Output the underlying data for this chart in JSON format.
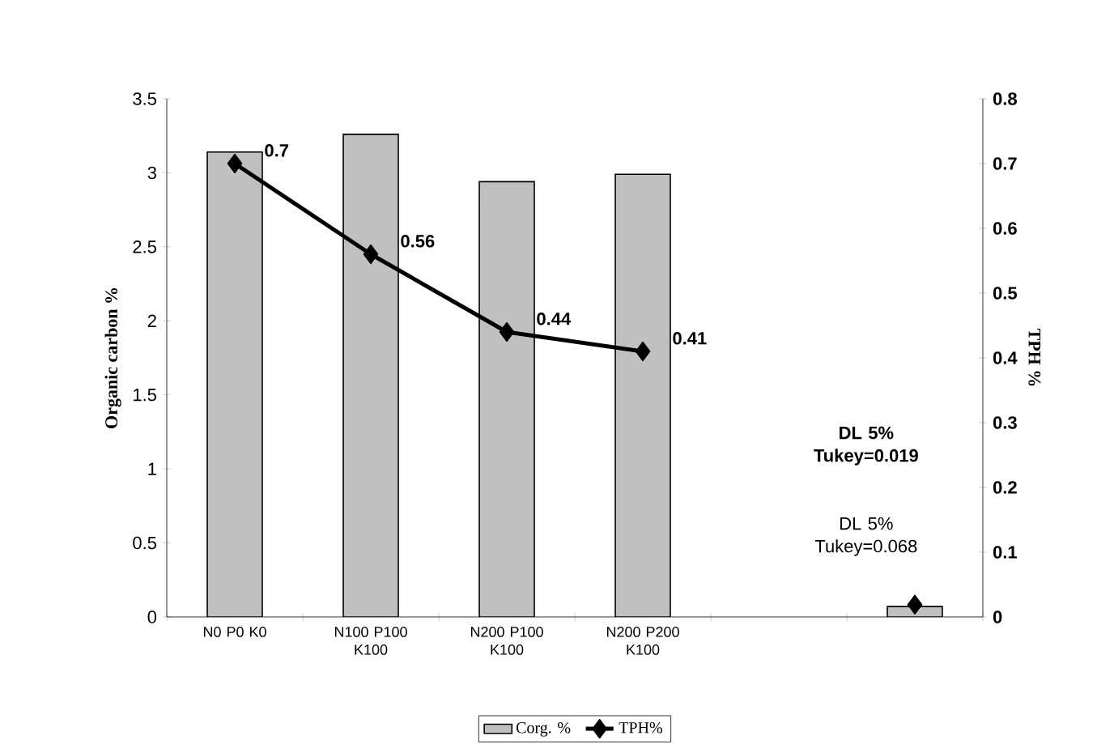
{
  "chart_data": {
    "type": "bar",
    "categories": [
      "N0 P0 K0",
      "N100 P100 K100",
      "N200 P100 K100",
      "N200 P200 K100",
      null,
      null
    ],
    "ylabel": "Organic carbon %",
    "y2label": "TPH %",
    "ylim": [
      0,
      3.5
    ],
    "yticks": [
      0,
      0.5,
      1,
      1.5,
      2,
      2.5,
      3,
      3.5
    ],
    "y2lim": [
      0,
      0.8
    ],
    "y2ticks": [
      0,
      0.1,
      0.2,
      0.3,
      0.4,
      0.5,
      0.6,
      0.7,
      0.8
    ],
    "legend": "bottom",
    "grid": false,
    "series": [
      {
        "name": "Corg. %",
        "color": "#c0c0c0",
        "values": [
          3.14,
          3.26,
          2.94,
          2.99,
          null,
          0.07
        ]
      },
      {
        "name": "TPH%",
        "type": "line",
        "axis": "y2",
        "color": "#000000",
        "marker": "diamond",
        "values": [
          0.7,
          0.56,
          0.44,
          0.41,
          null,
          0.019
        ],
        "value_labels": [
          "0.7",
          "0.56",
          "0.44",
          "0.41",
          null,
          null
        ]
      }
    ],
    "annotations": [
      "DL 5% Tukey=0.019",
      "DL 5% Tukey=0.068"
    ]
  }
}
